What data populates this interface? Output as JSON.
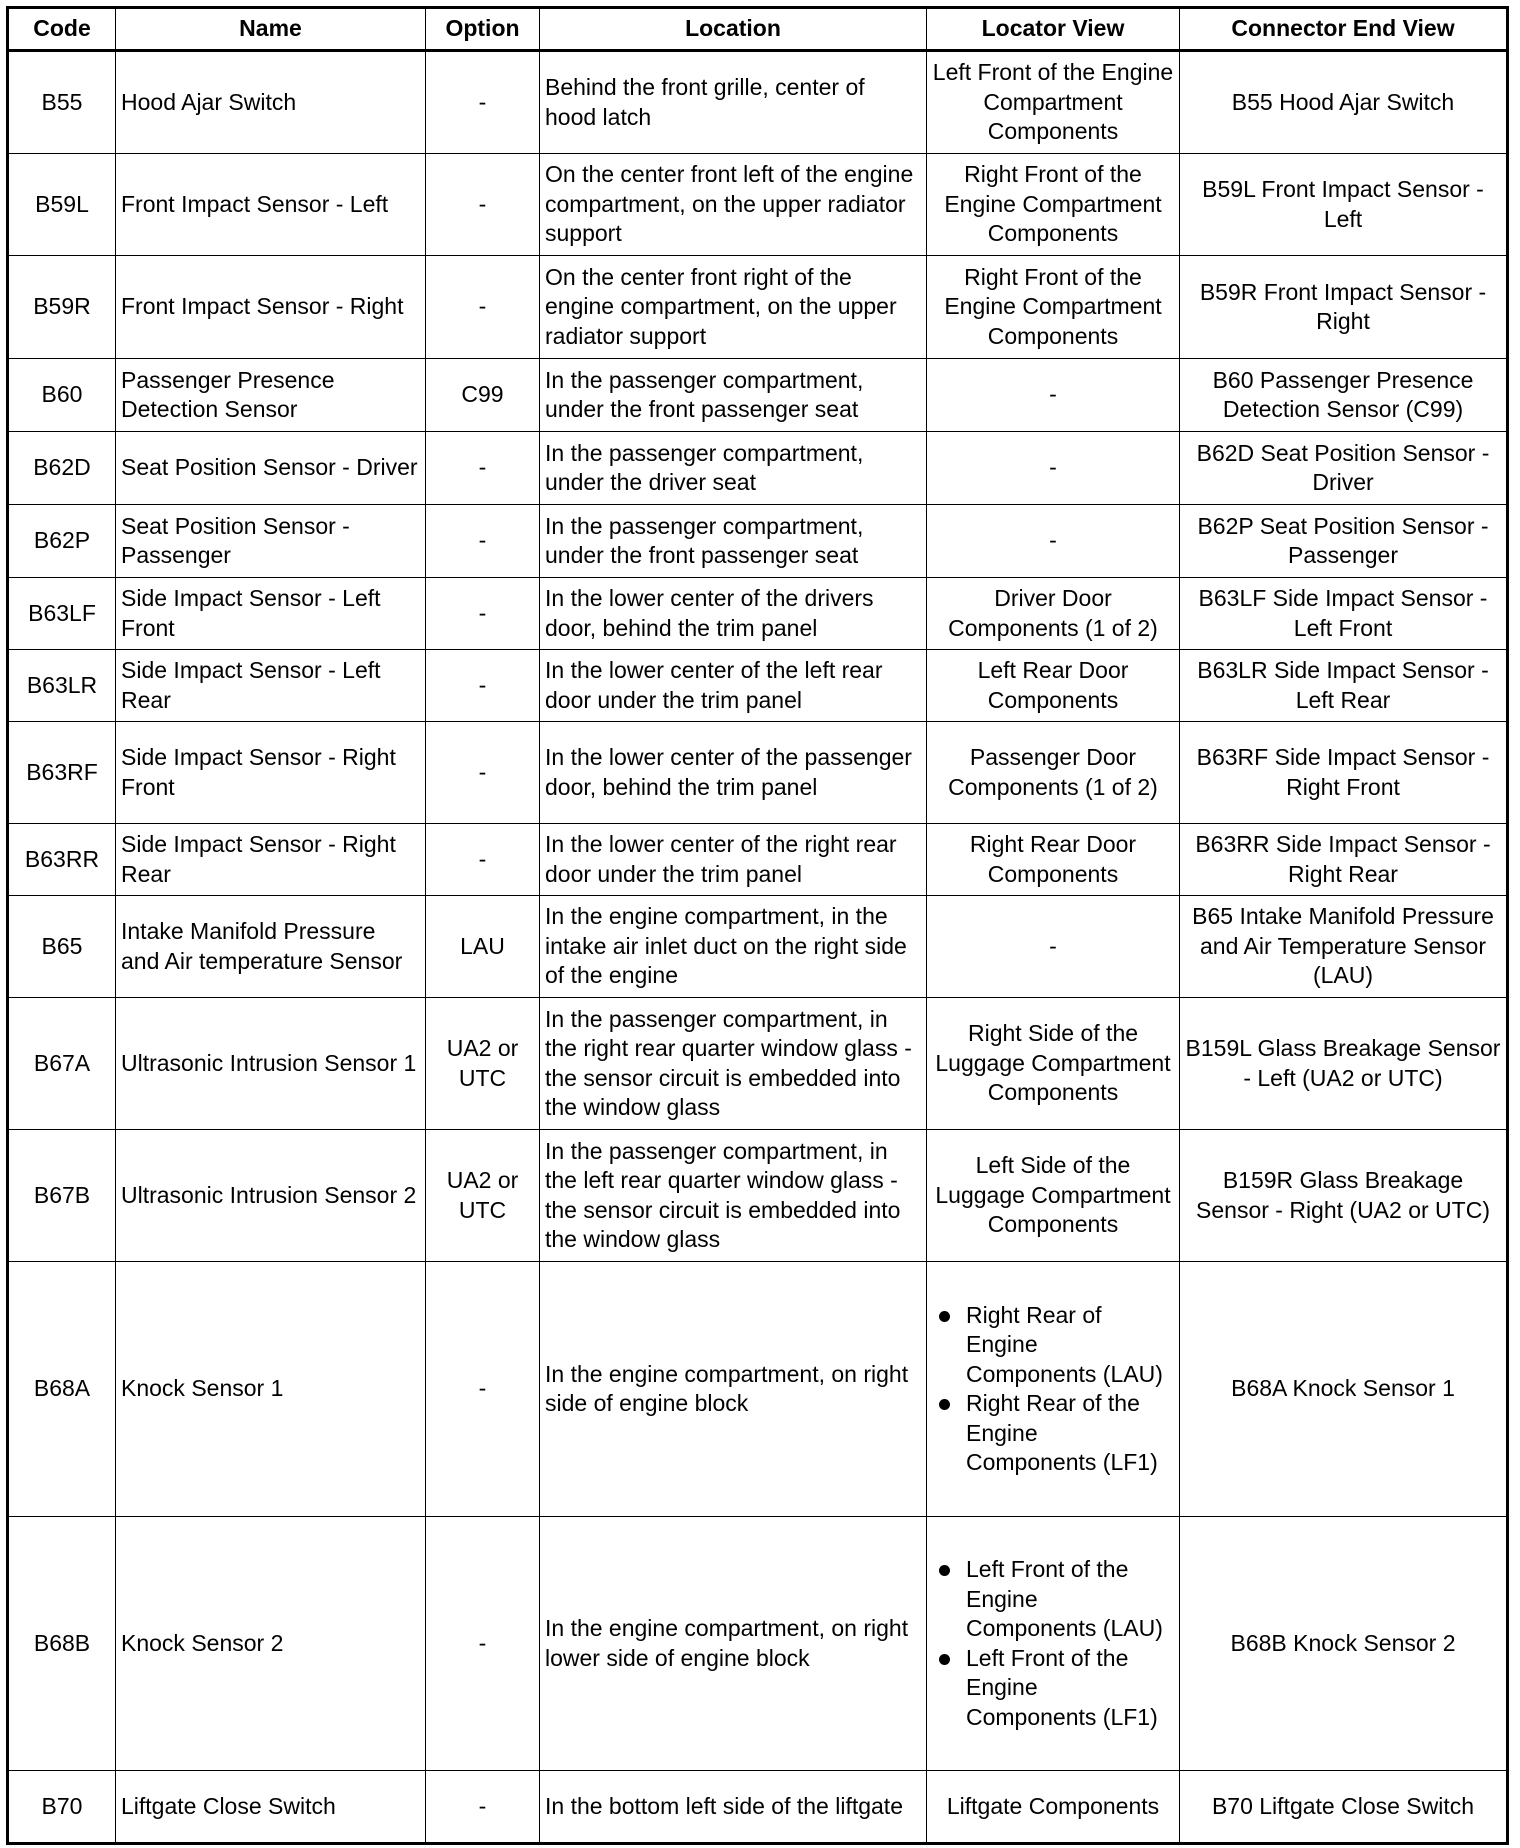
{
  "headers": [
    "Code",
    "Name",
    "Option",
    "Location",
    "Locator View",
    "Connector End View"
  ],
  "rows": [
    {
      "code": "B55",
      "name": "Hood Ajar Switch",
      "option": "-",
      "location": "Behind the front grille, center of hood latch",
      "locator": "Left Front of the Engine Compartment Components",
      "connector": "B55 Hood Ajar Switch"
    },
    {
      "code": "B59L",
      "name": "Front Impact Sensor - Left",
      "option": "-",
      "location": "On the center front left of the engine compartment, on the upper radiator support",
      "locator": "Right Front of the Engine Compartment Components",
      "connector": "B59L Front Impact Sensor - Left"
    },
    {
      "code": "B59R",
      "name": "Front Impact Sensor - Right",
      "option": "-",
      "location": "On the center front right of the engine compartment, on the upper radiator support",
      "locator": "Right Front of the Engine Compartment Components",
      "connector": "B59R Front Impact Sensor - Right"
    },
    {
      "code": "B60",
      "name": "Passenger Presence Detection Sensor",
      "option": "C99",
      "location": "In the passenger compartment, under the front passenger seat",
      "locator": "-",
      "connector": "B60 Passenger Presence Detection Sensor (C99)"
    },
    {
      "code": "B62D",
      "name": "Seat Position Sensor - Driver",
      "option": "-",
      "location": "In the passenger compartment, under the driver seat",
      "locator": "-",
      "connector": "B62D Seat Position Sensor - Driver"
    },
    {
      "code": "B62P",
      "name": "Seat Position Sensor - Passenger",
      "option": "-",
      "location": "In the passenger compartment, under the front passenger seat",
      "locator": "-",
      "connector": "B62P Seat Position Sensor - Passenger"
    },
    {
      "code": "B63LF",
      "name": "Side Impact Sensor - Left Front",
      "option": "-",
      "location": "In the lower center of the drivers door, behind the trim panel",
      "locator": "Driver Door Components (1 of 2)",
      "connector": "B63LF Side Impact Sensor - Left Front"
    },
    {
      "code": "B63LR",
      "name": "Side Impact Sensor - Left Rear",
      "option": "-",
      "location": "In the lower center of the left rear door under the trim panel",
      "locator": "Left Rear Door Components",
      "connector": "B63LR Side Impact Sensor - Left Rear"
    },
    {
      "code": "B63RF",
      "name": "Side Impact Sensor - Right Front",
      "option": "-",
      "location": "In the lower center of the passenger door, behind the trim panel",
      "locator": "Passenger Door Components (1 of 2)",
      "connector": "B63RF Side Impact Sensor - Right Front"
    },
    {
      "code": "B63RR",
      "name": "Side Impact Sensor - Right Rear",
      "option": "-",
      "location": "In the lower center of the right rear door under the trim panel",
      "locator": "Right Rear Door Components",
      "connector": "B63RR Side Impact Sensor - Right Rear"
    },
    {
      "code": "B65",
      "name": "Intake Manifold Pressure and Air temperature Sensor",
      "option": "LAU",
      "location": "In the engine compartment, in the intake air inlet duct on the right side of the engine",
      "locator": "-",
      "connector": "B65 Intake Manifold Pressure and Air Temperature Sensor (LAU)"
    },
    {
      "code": "B67A",
      "name": "Ultrasonic Intrusion Sensor 1",
      "option": "UA2 or UTC",
      "location": "In the passenger compartment, in the right rear quarter window glass - the sensor circuit is embedded into the window glass",
      "locator": "Right Side of the Luggage Compartment Components",
      "connector": "B159L Glass Breakage Sensor - Left (UA2 or UTC)"
    },
    {
      "code": "B67B",
      "name": "Ultrasonic Intrusion Sensor 2",
      "option": "UA2 or UTC",
      "location": "In the passenger compartment, in the left rear quarter window glass - the sensor circuit is embedded into the window glass",
      "locator": "Left Side of the Luggage Compartment Components",
      "connector": "B159R Glass Breakage Sensor - Right (UA2 or UTC)"
    },
    {
      "code": "B68A",
      "name": "Knock Sensor 1",
      "option": "-",
      "location": "In the engine compartment, on right side of engine block",
      "locator_list": [
        "Right Rear of Engine Components (LAU)",
        "Right Rear of the Engine Components (LF1)"
      ],
      "connector": "B68A Knock Sensor 1"
    },
    {
      "code": "B68B",
      "name": "Knock Sensor 2",
      "option": "-",
      "location": "In the engine compartment, on right lower side of engine block",
      "locator_list": [
        "Left Front of the Engine Components (LAU)",
        "Left Front of the Engine Components (LF1)"
      ],
      "connector": "B68B Knock Sensor 2"
    },
    {
      "code": "B70",
      "name": "Liftgate Close Switch",
      "option": "-",
      "location": "In the bottom left side of the liftgate",
      "locator": "Liftgate Components",
      "connector": "B70 Liftgate Close Switch"
    }
  ]
}
